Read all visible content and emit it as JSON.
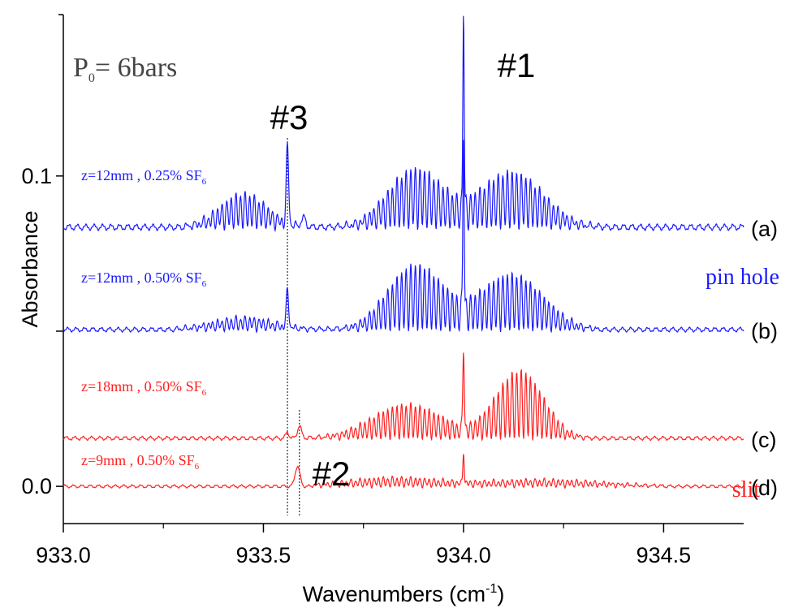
{
  "chart_data": {
    "type": "line",
    "xlabel": "Wavenumbers (cm",
    "xlabel_sup": "-1",
    "xlabel_close": ")",
    "ylabel": "Absorbance",
    "xlim": [
      933.0,
      934.7
    ],
    "ylim": [
      -0.012,
      0.152
    ],
    "x_ticks": [
      {
        "value": 933.0,
        "label": "933.0"
      },
      {
        "value": 933.5,
        "label": "933.5"
      },
      {
        "value": 934.0,
        "label": "934.0"
      },
      {
        "value": 934.5,
        "label": "934.5"
      }
    ],
    "x_minor_ticks": [
      933.25,
      933.75,
      934.25
    ],
    "y_ticks": [
      {
        "value": 0.0,
        "label": "0.0"
      },
      {
        "value": 0.05,
        "label": ""
      },
      {
        "value": 0.1,
        "label": "0.1"
      }
    ],
    "pressure_label": {
      "main": "P",
      "sub": "0",
      "rest": "= 6bars"
    },
    "peak_labels": [
      {
        "text": "#1",
        "x": 934.0
      },
      {
        "text": "#3",
        "x": 933.56
      },
      {
        "text": "#2",
        "x": 933.59
      }
    ],
    "reference_lines_x": [
      933.56,
      933.59
    ],
    "group_labels": [
      {
        "text": "pin hole",
        "color": "#1a1aff"
      },
      {
        "text": "slit",
        "color": "#ff2020"
      }
    ],
    "series": [
      {
        "trace_label": "(a)",
        "annotation": {
          "text": "z=12mm , 0.25% SF",
          "sub": "6"
        },
        "color": "#1a1aff",
        "baseline": 0.0835,
        "ripple": 0.0008,
        "spikes": [
          {
            "x": 934.0,
            "height": 0.069,
            "width": 0.0016
          },
          {
            "x": 933.56,
            "height": 0.025,
            "width": 0.003
          },
          {
            "x": 933.6,
            "height": 0.003,
            "width": 0.005
          }
        ],
        "bands": [
          {
            "center": 933.45,
            "sigma": 0.06,
            "amp": 0.011
          },
          {
            "center": 933.88,
            "sigma": 0.07,
            "amp": 0.019
          },
          {
            "center": 934.12,
            "sigma": 0.08,
            "amp": 0.018
          }
        ],
        "band_range": [
          933.3,
          934.36
        ]
      },
      {
        "trace_label": "(b)",
        "annotation": {
          "text": "z=12mm , 0.50% SF",
          "sub": "6"
        },
        "color": "#1a1aff",
        "baseline": 0.0505,
        "ripple": 0.0006,
        "spikes": [
          {
            "x": 934.0,
            "height": 0.062,
            "width": 0.0016
          },
          {
            "x": 933.56,
            "height": 0.012,
            "width": 0.003
          }
        ],
        "bands": [
          {
            "center": 933.45,
            "sigma": 0.08,
            "amp": 0.004
          },
          {
            "center": 933.88,
            "sigma": 0.07,
            "amp": 0.021
          },
          {
            "center": 934.12,
            "sigma": 0.08,
            "amp": 0.018
          }
        ],
        "band_range": [
          933.28,
          934.33
        ]
      },
      {
        "trace_label": "(c)",
        "annotation": {
          "text": "z=18mm , 0.50% SF",
          "sub": "6"
        },
        "color": "#ff2020",
        "baseline": 0.0155,
        "ripple": 0.0005,
        "spikes": [
          {
            "x": 934.0,
            "height": 0.028,
            "width": 0.0018
          },
          {
            "x": 933.59,
            "height": 0.004,
            "width": 0.005
          },
          {
            "x": 933.56,
            "height": 0.002,
            "width": 0.004
          }
        ],
        "bands": [
          {
            "center": 933.86,
            "sigma": 0.09,
            "amp": 0.011
          },
          {
            "center": 934.14,
            "sigma": 0.06,
            "amp": 0.022
          }
        ],
        "band_range": [
          933.6,
          934.32
        ]
      },
      {
        "trace_label": "(d)",
        "annotation": {
          "text": "z=9mm , 0.50% SF",
          "sub": "6"
        },
        "color": "#ff2020",
        "baseline": 0.0,
        "ripple": 0.0004,
        "spikes": [
          {
            "x": 934.0,
            "height": 0.011,
            "width": 0.0016
          },
          {
            "x": 933.585,
            "height": 0.0065,
            "width": 0.006
          }
        ],
        "bands": [
          {
            "center": 933.82,
            "sigma": 0.12,
            "amp": 0.0028
          },
          {
            "center": 934.2,
            "sigma": 0.15,
            "amp": 0.0022
          }
        ],
        "band_range": [
          933.62,
          934.5
        ]
      }
    ]
  }
}
